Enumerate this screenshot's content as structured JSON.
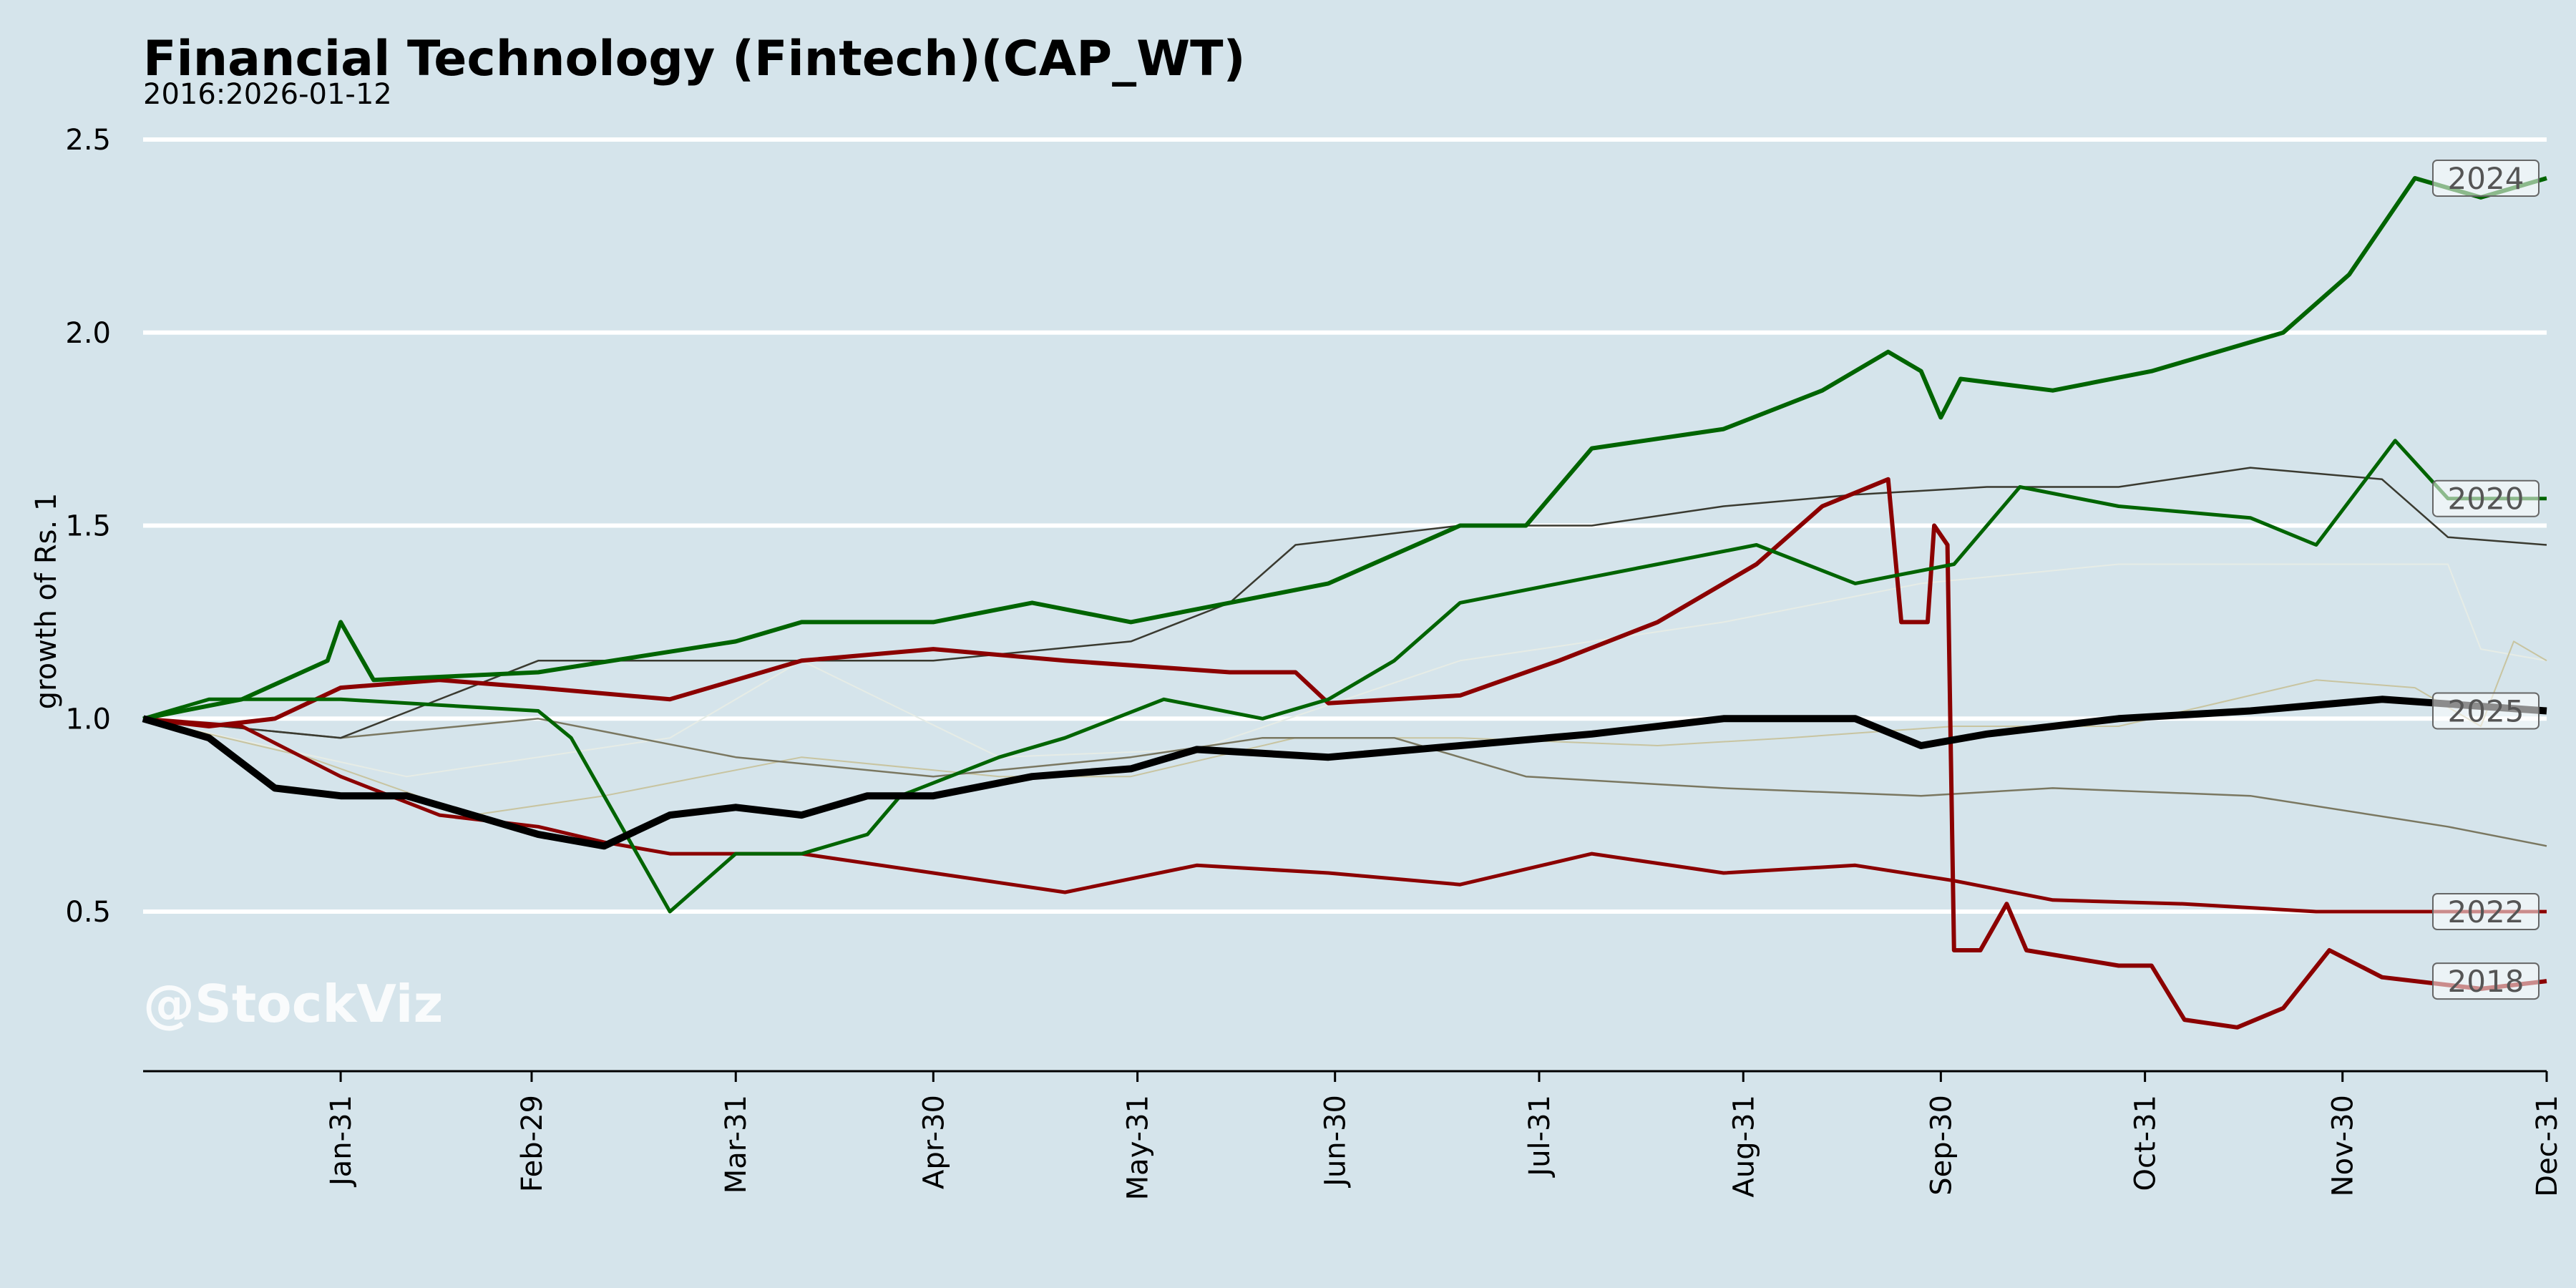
{
  "chart_data": {
    "type": "line",
    "title": "Financial Technology (Fintech)(CAP_WT)",
    "subtitle": "2016:2026-01-12",
    "xlabel": "",
    "ylabel": "growth of Rs. 1",
    "watermark": "@StockViz",
    "ylim": [
      0.087,
      2.6
    ],
    "xlim": [
      0,
      365
    ],
    "grid": "horizontal",
    "yticks": [
      0.5,
      1.0,
      1.5,
      2.0,
      2.5
    ],
    "ytick_labels": [
      "0.5",
      "1.0",
      "1.5",
      "2.0",
      "2.5"
    ],
    "xticks": [
      30,
      59,
      90,
      120,
      151,
      181,
      212,
      243,
      273,
      304,
      334,
      365
    ],
    "xtick_labels": [
      "Jan-31",
      "Feb-29",
      "Mar-31",
      "Apr-30",
      "May-31",
      "Jun-30",
      "Jul-31",
      "Aug-31",
      "Sep-30",
      "Oct-31",
      "Nov-30",
      "Dec-31"
    ],
    "series": [
      {
        "name": "pale-a",
        "label": "",
        "color": "#e6ece6",
        "width": 2,
        "points": [
          [
            0,
            1.0
          ],
          [
            40,
            0.85
          ],
          [
            80,
            0.95
          ],
          [
            100,
            1.15
          ],
          [
            130,
            0.9
          ],
          [
            160,
            0.92
          ],
          [
            200,
            1.15
          ],
          [
            240,
            1.25
          ],
          [
            270,
            1.35
          ],
          [
            300,
            1.4
          ],
          [
            330,
            1.4
          ],
          [
            350,
            1.4
          ],
          [
            355,
            1.18
          ],
          [
            365,
            1.15
          ]
        ]
      },
      {
        "name": "pale-b",
        "label": "",
        "color": "#c8c4a0",
        "width": 2,
        "points": [
          [
            0,
            1.0
          ],
          [
            25,
            0.9
          ],
          [
            50,
            0.75
          ],
          [
            70,
            0.8
          ],
          [
            100,
            0.9
          ],
          [
            130,
            0.85
          ],
          [
            150,
            0.85
          ],
          [
            175,
            0.95
          ],
          [
            200,
            0.95
          ],
          [
            230,
            0.93
          ],
          [
            250,
            0.95
          ],
          [
            275,
            0.98
          ],
          [
            300,
            0.98
          ],
          [
            330,
            1.1
          ],
          [
            345,
            1.08
          ],
          [
            355,
            0.98
          ],
          [
            360,
            1.2
          ],
          [
            365,
            1.15
          ]
        ]
      },
      {
        "name": "olive",
        "label": "",
        "color": "#7a7760",
        "width": 2.5,
        "points": [
          [
            0,
            1.0
          ],
          [
            30,
            0.95
          ],
          [
            60,
            1.0
          ],
          [
            90,
            0.9
          ],
          [
            120,
            0.85
          ],
          [
            150,
            0.9
          ],
          [
            170,
            0.95
          ],
          [
            190,
            0.95
          ],
          [
            210,
            0.85
          ],
          [
            240,
            0.82
          ],
          [
            270,
            0.8
          ],
          [
            290,
            0.82
          ],
          [
            320,
            0.8
          ],
          [
            350,
            0.72
          ],
          [
            365,
            0.67
          ]
        ]
      },
      {
        "name": "dark-gray",
        "label": "",
        "color": "#3a3a30",
        "width": 2.5,
        "points": [
          [
            0,
            1.0
          ],
          [
            30,
            0.95
          ],
          [
            60,
            1.15
          ],
          [
            90,
            1.15
          ],
          [
            120,
            1.15
          ],
          [
            150,
            1.2
          ],
          [
            165,
            1.3
          ],
          [
            175,
            1.45
          ],
          [
            200,
            1.5
          ],
          [
            220,
            1.5
          ],
          [
            240,
            1.55
          ],
          [
            260,
            1.58
          ],
          [
            280,
            1.6
          ],
          [
            300,
            1.6
          ],
          [
            320,
            1.65
          ],
          [
            340,
            1.62
          ],
          [
            350,
            1.47
          ],
          [
            365,
            1.45
          ]
        ]
      },
      {
        "name": "2022",
        "label": "2022",
        "color": "#8b0000",
        "width": 5,
        "points": [
          [
            0,
            1.0
          ],
          [
            15,
            0.98
          ],
          [
            30,
            0.85
          ],
          [
            45,
            0.75
          ],
          [
            60,
            0.72
          ],
          [
            70,
            0.68
          ],
          [
            80,
            0.65
          ],
          [
            100,
            0.65
          ],
          [
            120,
            0.6
          ],
          [
            140,
            0.55
          ],
          [
            160,
            0.62
          ],
          [
            180,
            0.6
          ],
          [
            200,
            0.57
          ],
          [
            220,
            0.65
          ],
          [
            240,
            0.6
          ],
          [
            260,
            0.62
          ],
          [
            275,
            0.58
          ],
          [
            290,
            0.53
          ],
          [
            310,
            0.52
          ],
          [
            330,
            0.5
          ],
          [
            365,
            0.5
          ]
        ]
      },
      {
        "name": "2018",
        "label": "2018",
        "color": "#8b0000",
        "width": 6,
        "points": [
          [
            0,
            1.0
          ],
          [
            10,
            0.98
          ],
          [
            20,
            1.0
          ],
          [
            30,
            1.08
          ],
          [
            45,
            1.1
          ],
          [
            60,
            1.08
          ],
          [
            80,
            1.05
          ],
          [
            100,
            1.15
          ],
          [
            120,
            1.18
          ],
          [
            140,
            1.15
          ],
          [
            165,
            1.12
          ],
          [
            175,
            1.12
          ],
          [
            180,
            1.04
          ],
          [
            200,
            1.06
          ],
          [
            215,
            1.15
          ],
          [
            230,
            1.25
          ],
          [
            245,
            1.4
          ],
          [
            255,
            1.55
          ],
          [
            265,
            1.62
          ],
          [
            267,
            1.25
          ],
          [
            271,
            1.25
          ],
          [
            272,
            1.5
          ],
          [
            274,
            1.45
          ],
          [
            275,
            0.4
          ],
          [
            279,
            0.4
          ],
          [
            283,
            0.52
          ],
          [
            286,
            0.4
          ],
          [
            300,
            0.36
          ],
          [
            305,
            0.36
          ],
          [
            310,
            0.22
          ],
          [
            318,
            0.2
          ],
          [
            325,
            0.25
          ],
          [
            332,
            0.4
          ],
          [
            340,
            0.33
          ],
          [
            355,
            0.3
          ],
          [
            365,
            0.32
          ]
        ]
      },
      {
        "name": "2020",
        "label": "2020",
        "color": "#006400",
        "width": 5,
        "points": [
          [
            0,
            1.0
          ],
          [
            10,
            1.05
          ],
          [
            30,
            1.05
          ],
          [
            60,
            1.02
          ],
          [
            65,
            0.95
          ],
          [
            75,
            0.65
          ],
          [
            80,
            0.5
          ],
          [
            90,
            0.65
          ],
          [
            100,
            0.65
          ],
          [
            110,
            0.7
          ],
          [
            115,
            0.8
          ],
          [
            130,
            0.9
          ],
          [
            140,
            0.95
          ],
          [
            155,
            1.05
          ],
          [
            170,
            1.0
          ],
          [
            180,
            1.05
          ],
          [
            190,
            1.15
          ],
          [
            200,
            1.3
          ],
          [
            215,
            1.35
          ],
          [
            230,
            1.4
          ],
          [
            245,
            1.45
          ],
          [
            260,
            1.35
          ],
          [
            275,
            1.4
          ],
          [
            285,
            1.6
          ],
          [
            300,
            1.55
          ],
          [
            320,
            1.52
          ],
          [
            330,
            1.45
          ],
          [
            342,
            1.72
          ],
          [
            350,
            1.57
          ],
          [
            365,
            1.57
          ]
        ]
      },
      {
        "name": "2024",
        "label": "2024",
        "color": "#006400",
        "width": 6,
        "points": [
          [
            0,
            1.0
          ],
          [
            15,
            1.05
          ],
          [
            28,
            1.15
          ],
          [
            30,
            1.25
          ],
          [
            35,
            1.1
          ],
          [
            60,
            1.12
          ],
          [
            90,
            1.2
          ],
          [
            100,
            1.25
          ],
          [
            120,
            1.25
          ],
          [
            135,
            1.3
          ],
          [
            150,
            1.25
          ],
          [
            165,
            1.3
          ],
          [
            180,
            1.35
          ],
          [
            200,
            1.5
          ],
          [
            210,
            1.5
          ],
          [
            220,
            1.7
          ],
          [
            240,
            1.75
          ],
          [
            255,
            1.85
          ],
          [
            265,
            1.95
          ],
          [
            270,
            1.9
          ],
          [
            273,
            1.78
          ],
          [
            276,
            1.88
          ],
          [
            290,
            1.85
          ],
          [
            305,
            1.9
          ],
          [
            315,
            1.95
          ],
          [
            325,
            2.0
          ],
          [
            335,
            2.15
          ],
          [
            345,
            2.4
          ],
          [
            355,
            2.35
          ],
          [
            365,
            2.4
          ]
        ]
      },
      {
        "name": "2025",
        "label": "2025",
        "color": "#000000",
        "width": 10,
        "points": [
          [
            0,
            1.0
          ],
          [
            10,
            0.95
          ],
          [
            20,
            0.82
          ],
          [
            30,
            0.8
          ],
          [
            40,
            0.8
          ],
          [
            50,
            0.75
          ],
          [
            60,
            0.7
          ],
          [
            70,
            0.67
          ],
          [
            80,
            0.75
          ],
          [
            90,
            0.77
          ],
          [
            100,
            0.75
          ],
          [
            110,
            0.8
          ],
          [
            120,
            0.8
          ],
          [
            135,
            0.85
          ],
          [
            150,
            0.87
          ],
          [
            160,
            0.92
          ],
          [
            180,
            0.9
          ],
          [
            200,
            0.93
          ],
          [
            220,
            0.96
          ],
          [
            240,
            1.0
          ],
          [
            260,
            1.0
          ],
          [
            270,
            0.93
          ],
          [
            280,
            0.96
          ],
          [
            300,
            1.0
          ],
          [
            320,
            1.02
          ],
          [
            340,
            1.05
          ],
          [
            365,
            1.02
          ]
        ]
      }
    ]
  }
}
